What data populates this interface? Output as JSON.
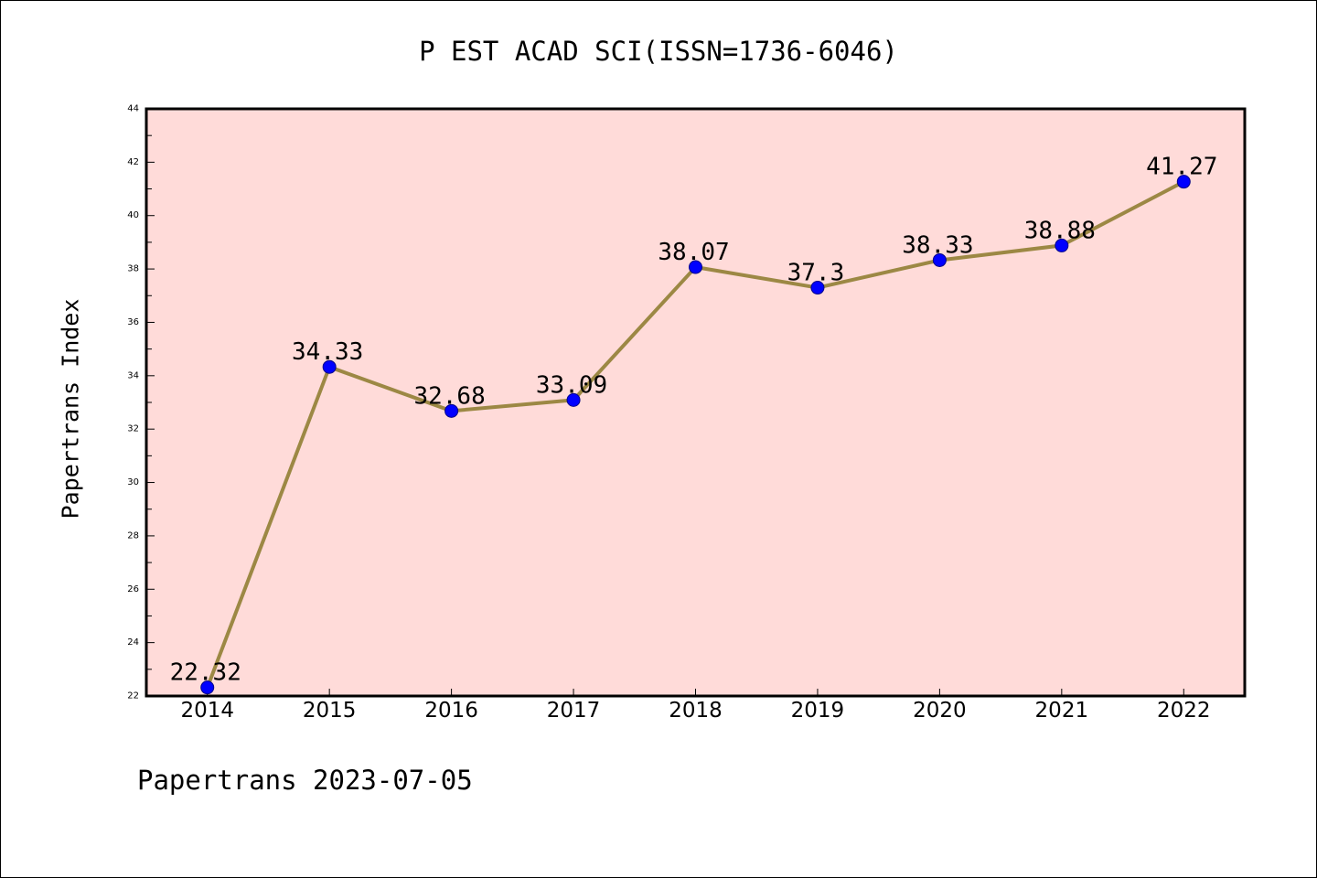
{
  "chart_data": {
    "type": "line",
    "title": "P EST ACAD SCI(ISSN=1736-6046)",
    "xlabel": "",
    "ylabel": "Papertrans Index",
    "categories": [
      "2014",
      "2015",
      "2016",
      "2017",
      "2018",
      "2019",
      "2020",
      "2021",
      "2022"
    ],
    "series": [
      {
        "values": [
          22.32,
          34.33,
          32.68,
          33.09,
          38.07,
          37.3,
          38.33,
          38.88,
          41.27
        ]
      }
    ],
    "ylim": [
      22,
      44
    ],
    "yticks": [
      22,
      24,
      26,
      28,
      30,
      32,
      34,
      36,
      38,
      40,
      42,
      44
    ],
    "grid": false,
    "legend": "none",
    "data_labels": true,
    "colors": {
      "line": "#9c8844",
      "marker": "#0000ff",
      "marker_edge": "#00008b",
      "plot_background": "#ffdbd9"
    }
  },
  "footer": "Papertrans 2023-07-05"
}
